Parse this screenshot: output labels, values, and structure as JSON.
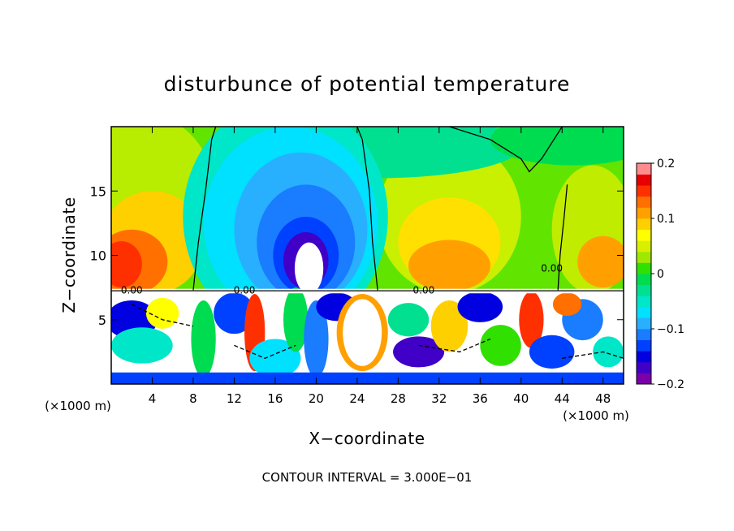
{
  "chart_data": {
    "type": "heatmap",
    "title": "disturbunce of potential temperature",
    "xlabel": "X−coordinate",
    "ylabel": "Z−coordinate",
    "x_units_label": "(×1000 m)",
    "x_units_label_right": "(×1000 m)",
    "xlim": [
      0,
      50
    ],
    "ylim": [
      0,
      20
    ],
    "x_ticks": [
      4,
      8,
      12,
      16,
      20,
      24,
      28,
      32,
      36,
      40,
      44,
      48
    ],
    "y_ticks": [
      5,
      10,
      15
    ],
    "colorbar": {
      "range": [
        -0.2,
        0.2
      ],
      "labels": [
        {
          "value": 0.2,
          "text": "0.2"
        },
        {
          "value": 0.1,
          "text": "0.1"
        },
        {
          "value": 0,
          "text": "0"
        },
        {
          "value": -0.1,
          "text": "−0.1"
        },
        {
          "value": -0.2,
          "text": "−0.2"
        }
      ],
      "colors": [
        "#7a00a8",
        "#4000c8",
        "#0000e0",
        "#0040ff",
        "#1a7cff",
        "#28b0ff",
        "#00e0ff",
        "#00e6c8",
        "#00e090",
        "#00dc50",
        "#30e000",
        "#a0e800",
        "#d8f000",
        "#ffff00",
        "#ffd000",
        "#ffa000",
        "#ff7000",
        "#ff3000",
        "#e80000",
        "#ff8c8c"
      ]
    },
    "contour_interval_label": "CONTOUR INTERVAL = 3.000E−01",
    "contour_labels": [
      {
        "x": 2.0,
        "z": 7.3,
        "text": "0.00"
      },
      {
        "x": 13.0,
        "z": 7.3,
        "text": "0.00"
      },
      {
        "x": 30.5,
        "z": 7.3,
        "text": "0.00"
      },
      {
        "x": 43.0,
        "z": 9.0,
        "text": "0.00"
      }
    ],
    "grid": false,
    "legend": "colorbar-right"
  }
}
